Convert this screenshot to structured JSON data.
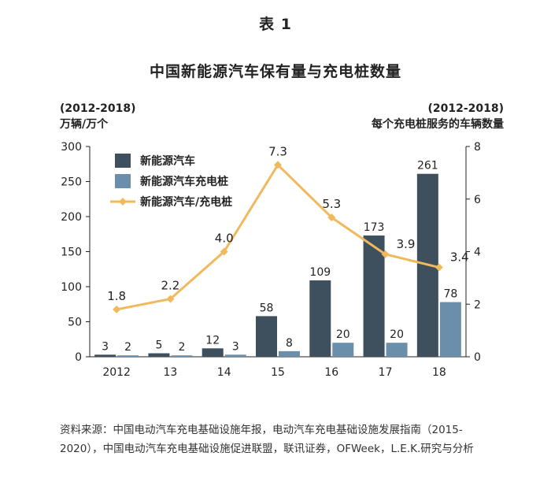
{
  "header": {
    "table_label": "表 1",
    "title": "中国新能源汽车保有量与充电桩数量"
  },
  "axes": {
    "left_range": "(2012-2018)",
    "left_unit": "万辆/万个",
    "right_range": "(2012-2018)",
    "right_unit": "每个充电桩服务的车辆数量"
  },
  "source": "资料来源：中国电动汽车充电基础设施年报，电动汽车充电基础设施发展指南（2015-2020），中国电动汽车充电基础设施促进联盟，联讯证券，OFWeek，L.E.K.研究与分析",
  "chart_data": {
    "type": "bar+line",
    "categories": [
      "2012",
      "13",
      "14",
      "15",
      "16",
      "17",
      "18"
    ],
    "series": [
      {
        "name": "新能源汽车",
        "kind": "bar",
        "axis": "left",
        "color": "#3e4f5e",
        "values": [
          3,
          5,
          12,
          58,
          109,
          173,
          261
        ]
      },
      {
        "name": "新能源汽车充电桩",
        "kind": "bar",
        "axis": "left",
        "color": "#6b8eaa",
        "values": [
          2,
          2,
          3,
          8,
          20,
          20,
          78
        ]
      },
      {
        "name": "新能源汽车/充电桩",
        "kind": "line",
        "axis": "right",
        "color": "#f0b95c",
        "values": [
          1.8,
          2.2,
          4.0,
          7.3,
          5.3,
          3.9,
          3.4
        ],
        "labels": [
          "1.8",
          "2.2",
          "4.0",
          "7.3",
          "5.3",
          "3.9",
          "3.4"
        ]
      }
    ],
    "left_axis": {
      "min": 0,
      "max": 300,
      "ticks": [
        0,
        50,
        100,
        150,
        200,
        250,
        300
      ]
    },
    "right_axis": {
      "min": 0,
      "max": 8,
      "ticks": [
        0,
        2,
        4,
        6,
        8
      ]
    },
    "legend_position": "top-left"
  }
}
